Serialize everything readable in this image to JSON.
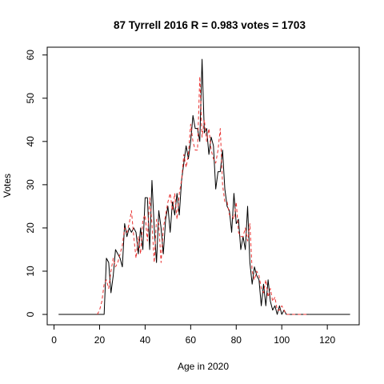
{
  "chart_data": {
    "type": "line",
    "title": "87 Tyrrell 2016 R = 0.983 votes = 1703",
    "xlabel": "Age in 2020",
    "ylabel": "Votes",
    "xlim": [
      -3,
      134
    ],
    "ylim": [
      -2.4,
      61.8
    ],
    "xticks": [
      0,
      20,
      40,
      60,
      80,
      100,
      120
    ],
    "yticks": [
      0,
      10,
      20,
      30,
      40,
      50,
      60
    ],
    "grid": false,
    "legend": "none",
    "series": [
      {
        "style": "solid",
        "color": "#000000",
        "x": [
          2,
          3,
          4,
          5,
          6,
          7,
          8,
          9,
          10,
          11,
          12,
          13,
          14,
          15,
          16,
          17,
          18,
          19,
          20,
          21,
          22,
          23,
          24,
          25,
          26,
          27,
          28,
          29,
          30,
          31,
          32,
          33,
          34,
          35,
          36,
          37,
          38,
          39,
          40,
          41,
          42,
          43,
          44,
          45,
          46,
          47,
          48,
          49,
          50,
          51,
          52,
          53,
          54,
          55,
          56,
          57,
          58,
          59,
          60,
          61,
          62,
          63,
          64,
          65,
          66,
          67,
          68,
          69,
          70,
          71,
          72,
          73,
          74,
          75,
          76,
          77,
          78,
          79,
          80,
          81,
          82,
          83,
          84,
          85,
          86,
          87,
          88,
          89,
          90,
          91,
          92,
          93,
          94,
          95,
          96,
          97,
          98,
          99,
          100,
          101,
          102,
          103,
          104,
          105,
          106,
          107,
          108,
          109,
          110,
          111,
          112,
          113,
          114,
          115,
          116,
          117,
          118,
          119,
          120,
          121,
          122,
          123,
          124,
          125,
          126,
          127,
          128,
          129,
          130
        ],
        "y": [
          0,
          0,
          0,
          0,
          0,
          0,
          0,
          0,
          0,
          0,
          0,
          0,
          0,
          0,
          0,
          0,
          0,
          0,
          0,
          0,
          0,
          13,
          12,
          5,
          9,
          15,
          14,
          13,
          11,
          21,
          18,
          20,
          19,
          20,
          19,
          14,
          20,
          15,
          27,
          27,
          15,
          31,
          20,
          12,
          24,
          20,
          14,
          22,
          25,
          19,
          26,
          23,
          28,
          23,
          31,
          35,
          39,
          36,
          40,
          46,
          43,
          43,
          40,
          59,
          42,
          43,
          37,
          41,
          39,
          29,
          33,
          33,
          38,
          29,
          25,
          24,
          19,
          28,
          21,
          22,
          15,
          18,
          15,
          25,
          12,
          7,
          11,
          9,
          8,
          2,
          7,
          2,
          8,
          3,
          1,
          2,
          0,
          2,
          0,
          1,
          0,
          0,
          0,
          0,
          0,
          0,
          0,
          0,
          0,
          0,
          0,
          0,
          0,
          0,
          0,
          0,
          0,
          0,
          0,
          0,
          0,
          0,
          0,
          0,
          0,
          0,
          0,
          0,
          0
        ]
      },
      {
        "style": "dashed",
        "color": "#e8302f",
        "x": [
          19,
          20,
          21,
          22,
          23,
          24,
          25,
          26,
          27,
          28,
          29,
          30,
          31,
          32,
          33,
          34,
          35,
          36,
          37,
          38,
          39,
          40,
          41,
          42,
          43,
          44,
          45,
          46,
          47,
          48,
          49,
          50,
          51,
          52,
          53,
          54,
          55,
          56,
          57,
          58,
          59,
          60,
          61,
          62,
          63,
          64,
          65,
          66,
          67,
          68,
          69,
          70,
          71,
          72,
          73,
          74,
          75,
          76,
          77,
          78,
          79,
          80,
          81,
          82,
          83,
          84,
          85,
          86,
          87,
          88,
          89,
          90,
          91,
          92,
          93,
          94,
          95,
          96,
          97,
          98,
          99,
          100,
          101,
          102,
          103,
          104,
          105,
          106,
          107,
          108,
          109,
          110,
          111,
          112
        ],
        "y": [
          0,
          1,
          3,
          7,
          8,
          6,
          10,
          13,
          11,
          12,
          14,
          16,
          20,
          19,
          21,
          24,
          18,
          13,
          18,
          14,
          22,
          23,
          17,
          27,
          21,
          12,
          22,
          21,
          12,
          20,
          23,
          26,
          28,
          24,
          28,
          22,
          28,
          31,
          37,
          34,
          37,
          44,
          40,
          38,
          38,
          55,
          41,
          45,
          40,
          43,
          38,
          36,
          35,
          38,
          43,
          30,
          26,
          26,
          23,
          23,
          22,
          26,
          19,
          18,
          18,
          20,
          17,
          21,
          10,
          8,
          10,
          9,
          6,
          5,
          8,
          4,
          6,
          3,
          4,
          1,
          1,
          2,
          1,
          0,
          0,
          0,
          0,
          0,
          0,
          0,
          0,
          0,
          0,
          0
        ]
      }
    ]
  }
}
